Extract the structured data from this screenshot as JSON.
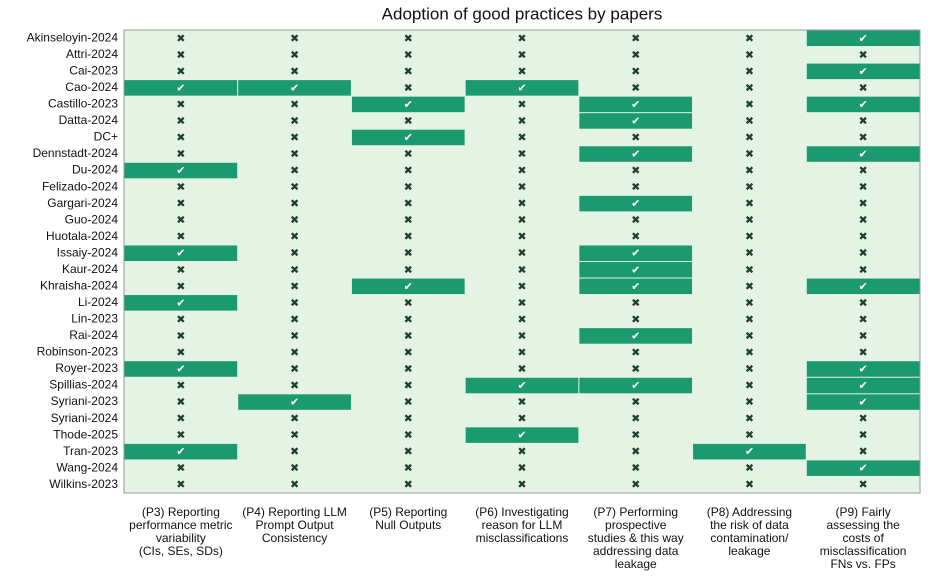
{
  "chart_data": {
    "type": "heatmap",
    "title": "Adoption of good practices by papers",
    "rows": [
      "Akinseloyin-2024",
      "Attri-2024",
      "Cai-2023",
      "Cao-2024",
      "Castillo-2023",
      "Datta-2024",
      "DC+",
      "Dennstadt-2024",
      "Du-2024",
      "Felizado-2024",
      "Gargari-2024",
      "Guo-2024",
      "Huotala-2024",
      "Issaiy-2024",
      "Kaur-2024",
      "Khraisha-2024",
      "Li-2024",
      "Lin-2023",
      "Rai-2024",
      "Robinson-2023",
      "Royer-2023",
      "Spillias-2024",
      "Syriani-2023",
      "Syriani-2024",
      "Thode-2025",
      "Tran-2023",
      "Wang-2024",
      "Wilkins-2023"
    ],
    "columns": [
      [
        "(P3) Reporting",
        "performance metric",
        "variability",
        "(CIs, SEs, SDs)"
      ],
      [
        "(P4) Reporting LLM",
        "Prompt Output",
        "Consistency"
      ],
      [
        "(P5) Reporting",
        "Null Outputs"
      ],
      [
        "(P6) Investigating",
        "reason for LLM",
        "misclassifications"
      ],
      [
        "(P7) Performing",
        "prospective",
        "studies & this way",
        "addressing data",
        "leakage"
      ],
      [
        "(P8) Addressing",
        "the risk of data",
        "contamination/",
        "leakage"
      ],
      [
        "(P9) Fairly",
        "assessing the",
        "costs of",
        "misclassification",
        "FNs vs. FPs"
      ]
    ],
    "values": [
      [
        0,
        0,
        0,
        0,
        0,
        0,
        1
      ],
      [
        0,
        0,
        0,
        0,
        0,
        0,
        0
      ],
      [
        0,
        0,
        0,
        0,
        0,
        0,
        1
      ],
      [
        1,
        1,
        0,
        1,
        0,
        0,
        0
      ],
      [
        0,
        0,
        1,
        0,
        1,
        0,
        1
      ],
      [
        0,
        0,
        0,
        0,
        1,
        0,
        0
      ],
      [
        0,
        0,
        1,
        0,
        0,
        0,
        0
      ],
      [
        0,
        0,
        0,
        0,
        1,
        0,
        1
      ],
      [
        1,
        0,
        0,
        0,
        0,
        0,
        0
      ],
      [
        0,
        0,
        0,
        0,
        0,
        0,
        0
      ],
      [
        0,
        0,
        0,
        0,
        1,
        0,
        0
      ],
      [
        0,
        0,
        0,
        0,
        0,
        0,
        0
      ],
      [
        0,
        0,
        0,
        0,
        0,
        0,
        0
      ],
      [
        1,
        0,
        0,
        0,
        1,
        0,
        0
      ],
      [
        0,
        0,
        0,
        0,
        1,
        0,
        0
      ],
      [
        0,
        0,
        1,
        0,
        1,
        0,
        1
      ],
      [
        1,
        0,
        0,
        0,
        0,
        0,
        0
      ],
      [
        0,
        0,
        0,
        0,
        0,
        0,
        0
      ],
      [
        0,
        0,
        0,
        0,
        1,
        0,
        0
      ],
      [
        0,
        0,
        0,
        0,
        0,
        0,
        0
      ],
      [
        1,
        0,
        0,
        0,
        0,
        0,
        1
      ],
      [
        0,
        0,
        0,
        1,
        1,
        0,
        1
      ],
      [
        0,
        1,
        0,
        0,
        0,
        0,
        1
      ],
      [
        0,
        0,
        0,
        0,
        0,
        0,
        0
      ],
      [
        0,
        0,
        0,
        1,
        0,
        0,
        0
      ],
      [
        1,
        0,
        0,
        0,
        0,
        1,
        0
      ],
      [
        0,
        0,
        0,
        0,
        0,
        0,
        1
      ],
      [
        0,
        0,
        0,
        0,
        0,
        0,
        0
      ]
    ],
    "value_labels": [
      [
        "✖",
        "✖",
        "✖",
        "✖",
        "✖",
        "✖",
        "✔"
      ],
      [
        "✖",
        "✖",
        "✖",
        "✖",
        "✖",
        "✖",
        "✖"
      ],
      [
        "✖",
        "✖",
        "✖",
        "✖",
        "✖",
        "✖",
        "✔"
      ],
      [
        "✔",
        "✔",
        "✖",
        "✔",
        "✖",
        "✖",
        "✖"
      ],
      [
        "✖",
        "✖",
        "✔",
        "✖",
        "✔",
        "✖",
        "✔"
      ],
      [
        "✖",
        "✖",
        "✖",
        "✖",
        "✔",
        "✖",
        "✖"
      ],
      [
        "✖",
        "✖",
        "✔",
        "✖",
        "✖",
        "✖",
        "✖"
      ],
      [
        "✖",
        "✖",
        "✖",
        "✖",
        "✔",
        "✖",
        "✔"
      ],
      [
        "✔",
        "✖",
        "✖",
        "✖",
        "✖",
        "✖",
        "✖"
      ],
      [
        "✖",
        "✖",
        "✖",
        "✖",
        "✖",
        "✖",
        "✖"
      ],
      [
        "✖",
        "✖",
        "✖",
        "✖",
        "✔",
        "✖",
        "✖"
      ],
      [
        "✖",
        "✖",
        "✖",
        "✖",
        "✖",
        "✖",
        "✖"
      ],
      [
        "✖",
        "✖",
        "✖",
        "✖",
        "✖",
        "✖",
        "✖"
      ],
      [
        "✔",
        "✖",
        "✖",
        "✖",
        "✔",
        "✖",
        "✖"
      ],
      [
        "✖",
        "✖",
        "✖",
        "✖",
        "✔",
        "✖",
        "✖"
      ],
      [
        "✖",
        "✖",
        "✔",
        "✖",
        "✔",
        "✖",
        "✔"
      ],
      [
        "✔",
        "✖",
        "✖",
        "✖",
        "✖",
        "✖",
        "✖"
      ],
      [
        "✖",
        "✖",
        "✖",
        "✖",
        "✖",
        "✖",
        "✖"
      ],
      [
        "✖",
        "✖",
        "✖",
        "✖",
        "✔",
        "✖",
        "✖"
      ],
      [
        "✖",
        "✖",
        "✖",
        "✖",
        "✖",
        "✖",
        "✖"
      ],
      [
        "✔",
        "✖",
        "✖",
        "✖",
        "✖",
        "✖",
        "✔"
      ],
      [
        "✖",
        "✖",
        "✖",
        "✔",
        "✔",
        "✖",
        "✔"
      ],
      [
        "✖",
        "✔",
        "✖",
        "✖",
        "✖",
        "✖",
        "✔"
      ],
      [
        "✖",
        "✖",
        "✖",
        "✖",
        "✖",
        "✖",
        "✖"
      ],
      [
        "✖",
        "✖",
        "✖",
        "✔",
        "✖",
        "✖",
        "✖"
      ],
      [
        "✔",
        "✖",
        "✖",
        "✖",
        "✖",
        "✔",
        "✖"
      ],
      [
        "✖",
        "✖",
        "✖",
        "✖",
        "✖",
        "✖",
        "✔"
      ],
      [
        "✖",
        "✖",
        "✖",
        "✖",
        "✖",
        "✖",
        "✖"
      ]
    ],
    "color": "#1b9a70",
    "background": "#e4f3e4"
  }
}
